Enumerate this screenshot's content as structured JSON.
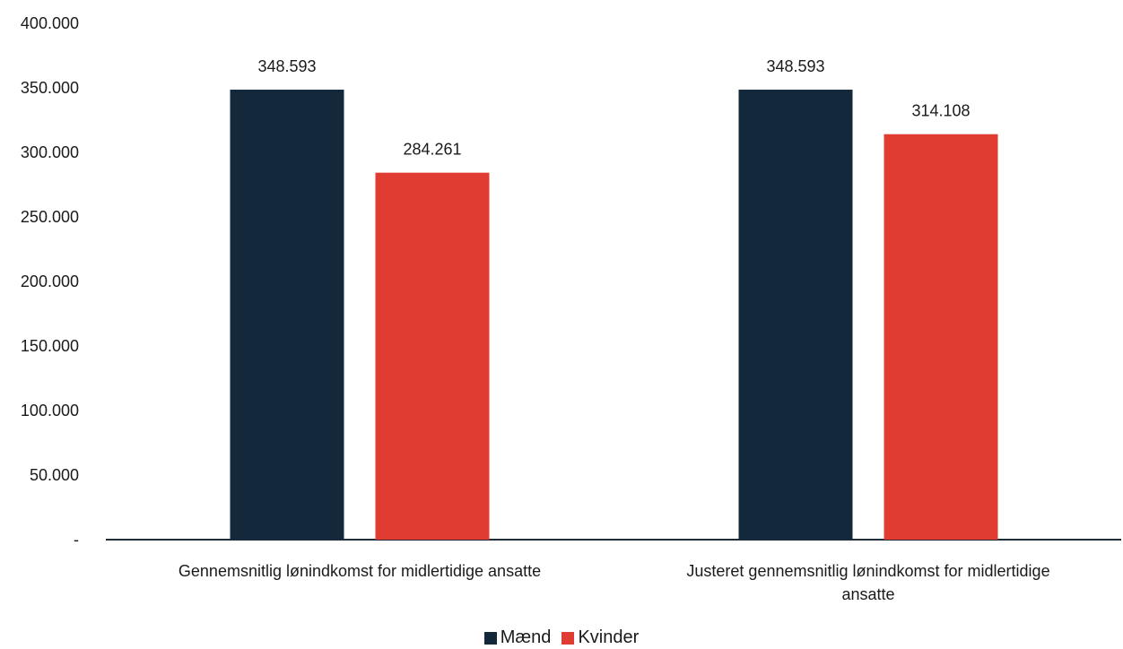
{
  "chart_data": {
    "type": "bar",
    "categories": [
      "Gennemsnitlig lønindkomst for midlertidige ansatte",
      "Justeret gennemsnitlig lønindkomst for midlertidige ansatte"
    ],
    "series": [
      {
        "name": "Mænd",
        "values": [
          348593,
          348593
        ],
        "labels": [
          "348.593",
          "348.593"
        ],
        "color": "#14283c"
      },
      {
        "name": "Kvinder",
        "values": [
          284261,
          314108
        ],
        "labels": [
          "284.261",
          "314.108"
        ],
        "color": "#e03c31"
      }
    ],
    "ylim": [
      0,
      400000
    ],
    "yticks": [
      {
        "value": 0,
        "label": "-"
      },
      {
        "value": 50000,
        "label": "50.000"
      },
      {
        "value": 100000,
        "label": "100.000"
      },
      {
        "value": 150000,
        "label": "150.000"
      },
      {
        "value": 200000,
        "label": "200.000"
      },
      {
        "value": 250000,
        "label": "250.000"
      },
      {
        "value": 300000,
        "label": "300.000"
      },
      {
        "value": 350000,
        "label": "350.000"
      },
      {
        "value": 400000,
        "label": "400.000"
      }
    ],
    "grid": false,
    "legend": "bottom-center",
    "title": "",
    "xlabel": "",
    "ylabel": ""
  }
}
